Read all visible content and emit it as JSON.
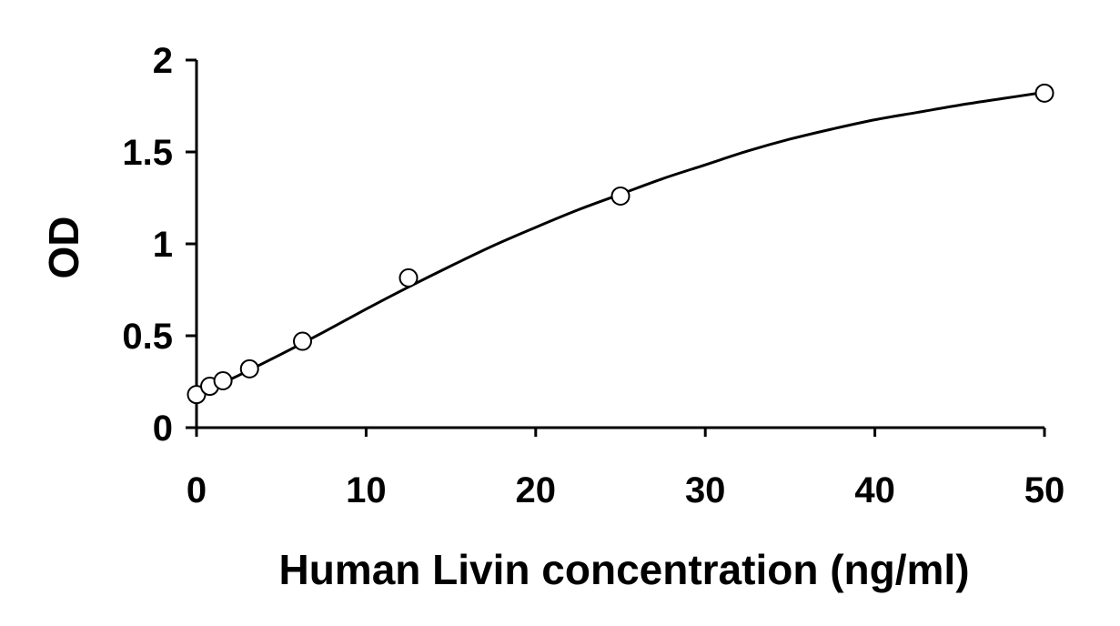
{
  "chart_data": {
    "type": "scatter",
    "title": "",
    "xlabel": "Human Livin concentration (ng/ml)",
    "ylabel": "OD",
    "xlim": [
      0,
      50
    ],
    "ylim": [
      0,
      2
    ],
    "xticks": [
      0,
      10,
      20,
      30,
      40,
      50
    ],
    "xtick_labels": [
      "0",
      "10",
      "20",
      "30",
      "40",
      "50"
    ],
    "yticks": [
      0,
      0.5,
      1,
      1.5,
      2
    ],
    "ytick_labels": [
      "0",
      "0.5",
      "1",
      "1.5",
      "2"
    ],
    "grid": false,
    "legend": "none",
    "series": [
      {
        "marker": "open-circle",
        "x": [
          0,
          0.78,
          1.56,
          3.125,
          6.25,
          12.5,
          25,
          50
        ],
        "y": [
          0.18,
          0.225,
          0.255,
          0.32,
          0.47,
          0.815,
          1.26,
          1.82
        ]
      }
    ],
    "fit_curve": {
      "style": "smooth-line",
      "x": [
        0,
        2.5,
        5,
        7.5,
        10,
        12.5,
        15,
        17.5,
        20,
        22.5,
        25,
        27.5,
        30,
        32.5,
        35,
        37.5,
        40,
        42.5,
        45,
        47.5,
        50
      ],
      "y": [
        0.175,
        0.285,
        0.4,
        0.52,
        0.645,
        0.765,
        0.88,
        0.99,
        1.09,
        1.185,
        1.27,
        1.355,
        1.43,
        1.505,
        1.57,
        1.625,
        1.675,
        1.715,
        1.755,
        1.79,
        1.825
      ]
    },
    "colors": {
      "axis": "#000000",
      "marker_fill": "#ffffff",
      "line": "#000000"
    }
  }
}
